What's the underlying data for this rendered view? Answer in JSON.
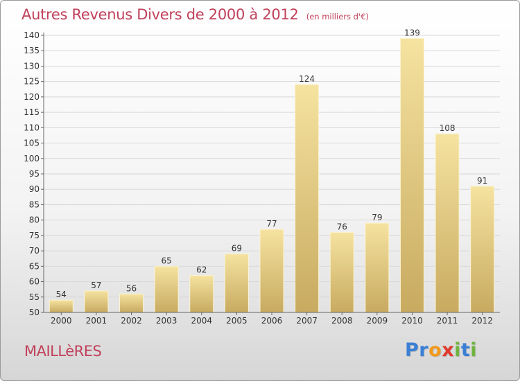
{
  "title": "Autres Revenus Divers de 2000 à 2012",
  "subtitle": "(en milliers d'€)",
  "commune": "MAILLèRES",
  "logo": {
    "letters": [
      {
        "char": "P",
        "color": "#3a7fd5"
      },
      {
        "char": "r",
        "color": "#3a7fd5"
      },
      {
        "char": "o",
        "color": "#f39a1e"
      },
      {
        "char": "x",
        "color": "#e03a2e"
      },
      {
        "char": "i",
        "color": "#6fb43f"
      },
      {
        "char": "t",
        "color": "#3a7fd5"
      },
      {
        "char": "i",
        "color": "#6fb43f"
      }
    ]
  },
  "colors": {
    "title": "#c0405a",
    "bar_light": "#f5e3a0",
    "bar_dark": "#c8aa60",
    "grid": "#d8d8d8"
  },
  "chart_data": {
    "type": "bar",
    "title": "Autres Revenus Divers de 2000 à 2012",
    "subtitle": "(en milliers d'€)",
    "categories": [
      "2000",
      "2001",
      "2002",
      "2003",
      "2004",
      "2005",
      "2006",
      "2007",
      "2008",
      "2009",
      "2010",
      "2011",
      "2012"
    ],
    "values": [
      54,
      57,
      56,
      65,
      62,
      69,
      77,
      124,
      76,
      79,
      139,
      108,
      91
    ],
    "ylim": [
      50,
      140
    ],
    "yticks": [
      50,
      55,
      60,
      65,
      70,
      75,
      80,
      85,
      90,
      95,
      100,
      105,
      110,
      115,
      120,
      125,
      130,
      135,
      140
    ],
    "grid": true,
    "data_labels": true
  }
}
